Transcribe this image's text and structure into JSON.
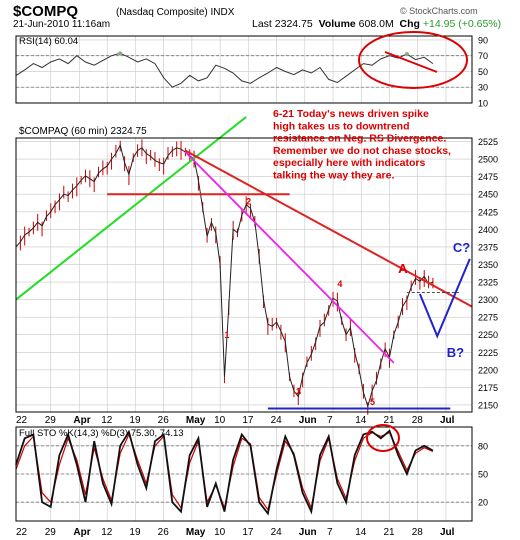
{
  "header": {
    "symbol": "$COMPQ",
    "name": "(Nasdaq Composite)",
    "exchange": "INDX",
    "source": "© StockCharts.com",
    "datetime": "21-Jun-2010 11:16am",
    "last_label": "Last",
    "last": "2324.75",
    "volume_label": "Volume",
    "volume": "608.0M",
    "chg_label": "Chg",
    "chg": "+14.95 (+0.65%)"
  },
  "colors": {
    "price_line": "#222222",
    "rsi_line": "#333333",
    "sto_k": "#111111",
    "sto_d": "#cc0000",
    "trend_red": "#dd2222",
    "trend_green": "#22dd22",
    "trend_magenta": "#ee22ee",
    "projection": "#2222cc",
    "annotation": "#dd0000",
    "grid": "#c8c8c8",
    "rsi_fill": "#8aa88a"
  },
  "chart_data": [
    {
      "type": "line",
      "title": "RSI(14) 60.04",
      "ylim": [
        10,
        95
      ],
      "yticks": [
        "90",
        "70",
        "50",
        "30",
        "10"
      ],
      "ref_lines": [
        70,
        30
      ],
      "x": [
        0,
        2,
        4,
        6,
        8,
        10,
        12,
        14,
        16,
        18,
        20,
        22,
        24,
        26,
        28,
        30,
        32,
        34,
        36,
        38,
        40,
        42,
        44,
        46,
        48,
        50,
        52,
        54,
        56,
        58,
        60,
        62,
        64,
        66,
        68,
        70,
        72,
        74,
        76,
        78,
        80,
        82,
        84,
        86,
        88,
        90,
        92,
        94,
        96
      ],
      "values": [
        45,
        52,
        60,
        55,
        62,
        66,
        60,
        70,
        62,
        58,
        64,
        70,
        73,
        68,
        62,
        66,
        60,
        42,
        30,
        35,
        45,
        38,
        42,
        58,
        54,
        48,
        38,
        35,
        42,
        48,
        55,
        50,
        46,
        52,
        48,
        55,
        40,
        36,
        44,
        52,
        60,
        58,
        66,
        70,
        67,
        72,
        65,
        68,
        60
      ]
    },
    {
      "type": "line",
      "title": "$COMPAQ (60 min) 2324.75",
      "ylim": [
        2140,
        2530
      ],
      "yticks": [
        "2525",
        "2500",
        "2475",
        "2450",
        "2425",
        "2400",
        "2375",
        "2350",
        "2325",
        "2300",
        "2275",
        "2250",
        "2225",
        "2200",
        "2175",
        "2150"
      ],
      "xticks": [
        "22",
        "29",
        "Apr",
        "12",
        "19",
        "26",
        "May",
        "10",
        "17",
        "24",
        "Jun",
        "7",
        "14",
        "21",
        "28",
        "Jul"
      ],
      "series": [
        {
          "x": [
            0,
            1,
            2,
            3,
            4,
            5,
            6,
            7,
            8,
            9,
            10,
            11,
            12,
            13,
            14,
            15,
            16,
            17,
            18,
            19,
            20,
            21,
            22,
            23,
            24,
            25,
            26,
            27,
            28,
            29,
            30,
            31,
            32,
            33,
            34,
            35,
            36,
            37,
            38,
            39,
            40,
            41,
            42,
            43,
            44,
            45,
            46,
            47,
            48,
            49,
            50,
            51,
            52,
            53,
            54,
            55,
            56,
            57,
            58,
            59,
            60,
            61,
            62,
            63,
            64,
            65,
            66,
            67,
            68,
            69,
            70,
            71,
            72,
            73,
            74,
            75,
            76,
            77,
            78,
            79,
            80,
            81,
            82,
            83,
            84,
            85,
            86,
            87,
            88,
            89,
            90,
            91,
            92,
            93,
            94,
            95,
            96
          ],
          "values": [
            2375,
            2382,
            2392,
            2396,
            2402,
            2410,
            2405,
            2418,
            2425,
            2435,
            2442,
            2450,
            2448,
            2456,
            2462,
            2470,
            2476,
            2472,
            2468,
            2480,
            2486,
            2490,
            2500,
            2508,
            2520,
            2495,
            2478,
            2502,
            2512,
            2516,
            2508,
            2504,
            2498,
            2495,
            2493,
            2505,
            2512,
            2516,
            2514,
            2510,
            2505,
            2500,
            2470,
            2430,
            2390,
            2410,
            2395,
            2350,
            2190,
            2290,
            2400,
            2395,
            2420,
            2435,
            2430,
            2410,
            2360,
            2300,
            2265,
            2262,
            2268,
            2255,
            2240,
            2190,
            2170,
            2162,
            2190,
            2210,
            2222,
            2240,
            2262,
            2268,
            2286,
            2302,
            2298,
            2270,
            2250,
            2260,
            2225,
            2200,
            2168,
            2148,
            2170,
            2185,
            2210,
            2230,
            2218,
            2250,
            2268,
            2290,
            2300,
            2318,
            2330,
            2326,
            2333,
            2322,
            2325
          ]
        }
      ],
      "annotations": [
        {
          "text": "1",
          "x": 48,
          "y": 2245
        },
        {
          "text": "2",
          "x": 53,
          "y": 2435
        },
        {
          "text": "3",
          "x": 64.5,
          "y": 2165
        },
        {
          "text": "4",
          "x": 74,
          "y": 2318
        },
        {
          "text": "5",
          "x": 81.5,
          "y": 2150
        },
        {
          "text": "A",
          "x": 88,
          "y": 2338
        },
        {
          "text": "B?",
          "x": 99.2,
          "y": 2218
        },
        {
          "text": "C?",
          "x": 100.6,
          "y": 2368
        }
      ],
      "note": "6-21 Today's news driven spike high takes us to downtrend resistance on Neg. RS Divergence. Remember we do not chase stocks, especially here with indicators talking the way they are."
    },
    {
      "type": "line",
      "title": "Full STO %K(14,3) %D(3) 75.30, 74.13",
      "ylim": [
        0,
        100
      ],
      "yticks": [
        "80",
        "50",
        "20"
      ],
      "ref_lines": [
        80,
        50,
        20
      ],
      "xticks": [
        "22",
        "29",
        "Apr",
        "12",
        "19",
        "26",
        "May",
        "10",
        "17",
        "24",
        "Jun",
        "7",
        "14",
        "21",
        "28",
        "Jul"
      ],
      "series": [
        {
          "name": "%K",
          "x": [
            0,
            2,
            4,
            6,
            8,
            10,
            12,
            14,
            16,
            18,
            20,
            22,
            24,
            26,
            28,
            30,
            32,
            34,
            36,
            38,
            40,
            42,
            44,
            46,
            48,
            50,
            52,
            54,
            56,
            58,
            60,
            62,
            64,
            66,
            68,
            70,
            72,
            74,
            76,
            78,
            80,
            82,
            84,
            86,
            88,
            90,
            92,
            94,
            96
          ],
          "values": [
            60,
            88,
            92,
            20,
            15,
            70,
            92,
            60,
            20,
            85,
            40,
            18,
            80,
            95,
            60,
            35,
            85,
            92,
            20,
            10,
            70,
            88,
            15,
            40,
            10,
            65,
            92,
            80,
            20,
            8,
            55,
            90,
            70,
            30,
            10,
            70,
            90,
            40,
            20,
            70,
            92,
            95,
            88,
            96,
            70,
            50,
            75,
            80,
            75
          ]
        },
        {
          "name": "%D",
          "x": [
            0,
            2,
            4,
            6,
            8,
            10,
            12,
            14,
            16,
            18,
            20,
            22,
            24,
            26,
            28,
            30,
            32,
            34,
            36,
            38,
            40,
            42,
            44,
            46,
            48,
            50,
            52,
            54,
            56,
            58,
            60,
            62,
            64,
            66,
            68,
            70,
            72,
            74,
            76,
            78,
            80,
            82,
            84,
            86,
            88,
            90,
            92,
            94,
            96
          ],
          "values": [
            55,
            80,
            90,
            30,
            20,
            60,
            88,
            65,
            28,
            78,
            45,
            22,
            72,
            92,
            65,
            40,
            80,
            90,
            28,
            14,
            62,
            85,
            20,
            38,
            14,
            58,
            88,
            82,
            25,
            12,
            50,
            85,
            72,
            35,
            14,
            64,
            88,
            45,
            24,
            64,
            88,
            94,
            90,
            94,
            74,
            54,
            72,
            78,
            74
          ]
        }
      ]
    }
  ]
}
